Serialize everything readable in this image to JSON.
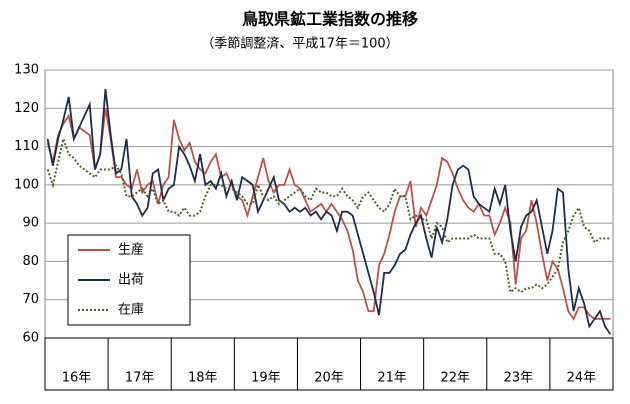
{
  "chart_data": {
    "type": "line",
    "title": "鳥取県鉱工業指数の推移",
    "subtitle": "（季節調整済、平成17年＝100）",
    "categories": [
      "16年",
      null,
      null,
      null,
      null,
      null,
      null,
      null,
      null,
      null,
      null,
      null,
      "17年",
      null,
      null,
      null,
      null,
      null,
      null,
      null,
      null,
      null,
      null,
      null,
      "18年",
      null,
      null,
      null,
      null,
      null,
      null,
      null,
      null,
      null,
      null,
      null,
      "19年",
      null,
      null,
      null,
      null,
      null,
      null,
      null,
      null,
      null,
      null,
      null,
      "20年",
      null,
      null,
      null,
      null,
      null,
      null,
      null,
      null,
      null,
      null,
      null,
      "21年",
      null,
      null,
      null,
      null,
      null,
      null,
      null,
      null,
      null,
      null,
      null,
      "22年",
      null,
      null,
      null,
      null,
      null,
      null,
      null,
      null,
      null,
      null,
      null,
      "23年",
      null,
      null,
      null,
      null,
      null,
      null,
      null,
      null,
      null,
      null,
      null,
      "24年",
      null,
      null,
      null,
      null,
      null,
      null,
      null,
      null,
      null,
      null,
      null
    ],
    "series": [
      {
        "name": "生産",
        "color": "#c0504d",
        "dash": "solid",
        "values": [
          111,
          106,
          113,
          116,
          118,
          112,
          115,
          114,
          113,
          104,
          108,
          120,
          112,
          102,
          102,
          100,
          99,
          104,
          98,
          100,
          101,
          95,
          100,
          102,
          117,
          112,
          109,
          111,
          106,
          104,
          103,
          106,
          108,
          102,
          103,
          100,
          97,
          96,
          92,
          97,
          102,
          107,
          101,
          98,
          100,
          100,
          104,
          100,
          99,
          96,
          93,
          94,
          95,
          93,
          95,
          93,
          91,
          88,
          83,
          75,
          72,
          67,
          67,
          79,
          82,
          87,
          93,
          97,
          97,
          101,
          89,
          94,
          92,
          96,
          100,
          107,
          106,
          103,
          99,
          96,
          94,
          93,
          95,
          92,
          92,
          87,
          90,
          94,
          90,
          74,
          86,
          88,
          96,
          90,
          82,
          75,
          80,
          78,
          73,
          67,
          65,
          68,
          68,
          66,
          65,
          65,
          65,
          65
        ]
      },
      {
        "name": "出荷",
        "color": "#1f2d4d",
        "dash": "solid",
        "values": [
          112,
          105,
          112,
          117,
          123,
          112,
          115,
          118,
          121,
          104,
          108,
          125,
          113,
          103,
          104,
          112,
          97,
          95,
          92,
          94,
          103,
          104,
          96,
          99,
          100,
          110,
          108,
          105,
          101,
          108,
          100,
          101,
          99,
          103,
          97,
          101,
          96,
          102,
          101,
          100,
          93,
          96,
          99,
          102,
          96,
          95,
          93,
          94,
          93,
          94,
          92,
          93,
          91,
          93,
          92,
          88,
          93,
          93,
          92,
          87,
          82,
          77,
          72,
          66,
          77,
          77,
          79,
          82,
          83,
          87,
          90,
          92,
          86,
          81,
          89,
          85,
          91,
          100,
          104,
          105,
          104,
          97,
          95,
          94,
          93,
          99,
          95,
          100,
          88,
          80,
          89,
          92,
          93,
          96,
          89,
          82,
          88,
          99,
          98,
          78,
          67,
          73,
          69,
          63,
          65,
          67,
          63,
          61
        ]
      },
      {
        "name": "在庫",
        "color": "#4f6228",
        "dash": "dotted",
        "values": [
          104,
          100,
          106,
          112,
          108,
          107,
          105,
          104,
          103,
          102,
          104,
          104,
          104,
          105,
          103,
          97,
          97,
          98,
          99,
          97,
          99,
          95,
          96,
          93,
          93,
          92,
          94,
          92,
          92,
          93,
          97,
          100,
          100,
          100,
          99,
          99,
          98,
          97,
          95,
          95,
          100,
          97,
          96,
          97,
          95,
          96,
          97,
          98,
          99,
          97,
          96,
          99,
          98,
          98,
          97,
          97,
          99,
          97,
          96,
          94,
          97,
          98,
          96,
          94,
          93,
          95,
          99,
          97,
          97,
          91,
          92,
          91,
          91,
          86,
          90,
          89,
          85,
          86,
          86,
          86,
          86,
          87,
          86,
          86,
          86,
          82,
          82,
          80,
          72,
          73,
          72,
          73,
          73,
          74,
          73,
          74,
          76,
          78,
          85,
          88,
          92,
          94,
          89,
          88,
          85,
          86,
          86,
          86
        ]
      }
    ],
    "ylim": [
      60,
      130
    ],
    "yticks": [
      60,
      70,
      80,
      90,
      100,
      110,
      120,
      130
    ],
    "grid": true,
    "legend": "lower-left"
  }
}
